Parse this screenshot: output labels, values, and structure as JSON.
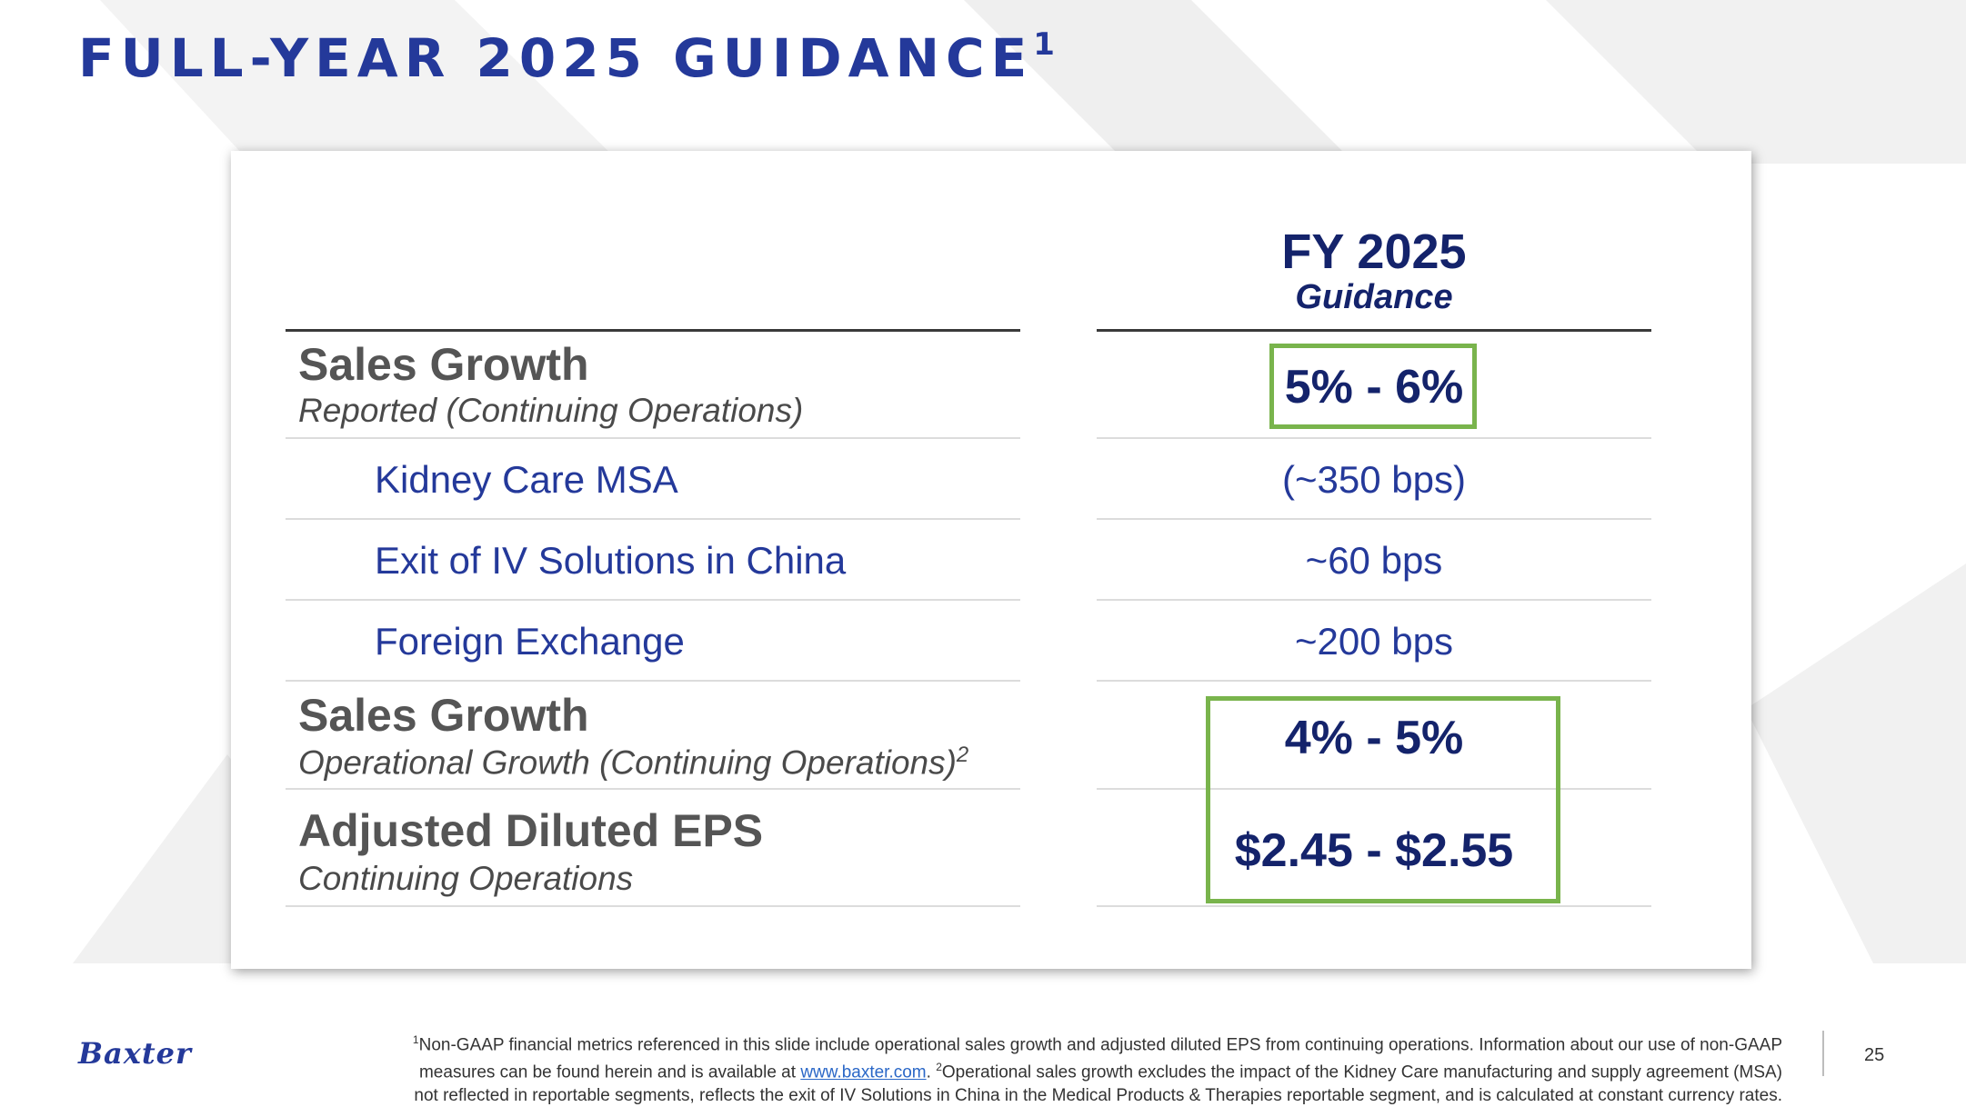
{
  "slide": {
    "title": "FULL-YEAR 2025 GUIDANCE",
    "title_sup": "1"
  },
  "table": {
    "header_main": "FY 2025",
    "header_sub": "Guidance",
    "rows": [
      {
        "main": "Sales Growth",
        "sub": "Reported (Continuing Operations)",
        "value": "5% - 6%"
      },
      {
        "label": "Kidney Care MSA",
        "value": "(~350 bps)"
      },
      {
        "label": "Exit of IV Solutions in China",
        "value": "~60 bps"
      },
      {
        "label": "Foreign Exchange",
        "value": "~200 bps"
      },
      {
        "main": "Sales Growth",
        "sub": "Operational Growth (Continuing Operations)",
        "sub_sup": "2",
        "value": "4% - 5%"
      },
      {
        "main": "Adjusted Diluted EPS",
        "sub": "Continuing Operations",
        "value": "$2.45 - $2.55"
      }
    ]
  },
  "footer": {
    "logo": "Baxter",
    "footnote": {
      "sup1": "1",
      "part1": "Non-GAAP financial metrics referenced in this slide include operational sales growth and adjusted diluted EPS from continuing operations. Information about our use of non-GAAP",
      "part2": "measures can be found herein and is available at ",
      "link": "www.baxter.com",
      "part3": ". ",
      "sup2": "2",
      "part4": "Operational sales growth excludes the impact of the Kidney Care manufacturing and supply agreement (MSA)",
      "part5": "not reflected in reportable segments, reflects the exit of IV Solutions in China in the Medical Products & Therapies reportable segment, and is calculated at constant currency rates."
    },
    "page_number": "25"
  },
  "colors": {
    "title_blue": "#24399a",
    "value_navy": "#14236b",
    "highlight_green": "#79b44c"
  }
}
